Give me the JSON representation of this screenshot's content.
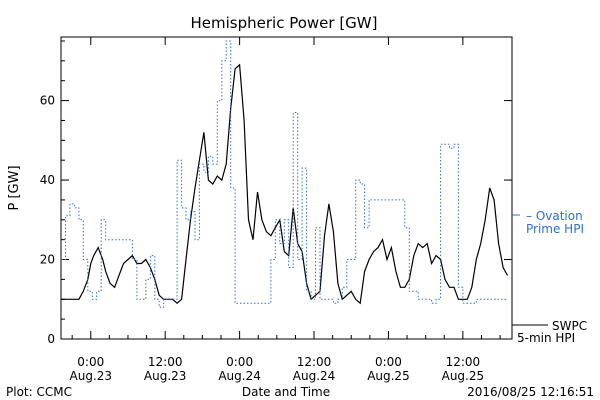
{
  "chart_data": {
    "type": "line",
    "title": "Hemispheric Power [GW]",
    "xlabel": "Date and Time",
    "ylabel": "P [GW]",
    "ylim": [
      0,
      76
    ],
    "xlim": [
      -0.2,
      2.83
    ],
    "yticks": [
      0,
      20,
      40,
      60
    ],
    "xticks": [
      {
        "x": 0.0,
        "time": "0:00",
        "date": "Aug.23"
      },
      {
        "x": 0.5,
        "time": "12:00",
        "date": "Aug.23"
      },
      {
        "x": 1.0,
        "time": "0:00",
        "date": "Aug.24"
      },
      {
        "x": 1.5,
        "time": "12:00",
        "date": "Aug.24"
      },
      {
        "x": 2.0,
        "time": "0:00",
        "date": "Aug.25"
      },
      {
        "x": 2.5,
        "time": "12:00",
        "date": "Aug.25"
      }
    ],
    "grid": false,
    "series": [
      {
        "name": "SWPC 5-min HPI",
        "legend_line1": "SWPC",
        "legend_line2": "5-min HPI",
        "color": "#000000",
        "style": "solid",
        "x": [
          -0.2,
          -0.16,
          -0.12,
          -0.08,
          -0.05,
          -0.02,
          0.0,
          0.02,
          0.05,
          0.08,
          0.1,
          0.13,
          0.16,
          0.19,
          0.22,
          0.25,
          0.28,
          0.31,
          0.34,
          0.37,
          0.4,
          0.43,
          0.46,
          0.49,
          0.52,
          0.55,
          0.58,
          0.61,
          0.64,
          0.67,
          0.7,
          0.73,
          0.76,
          0.79,
          0.82,
          0.85,
          0.88,
          0.91,
          0.94,
          0.97,
          1.0,
          1.03,
          1.06,
          1.09,
          1.12,
          1.15,
          1.18,
          1.21,
          1.24,
          1.27,
          1.3,
          1.33,
          1.36,
          1.39,
          1.42,
          1.45,
          1.48,
          1.51,
          1.54,
          1.57,
          1.6,
          1.63,
          1.66,
          1.69,
          1.72,
          1.75,
          1.78,
          1.81,
          1.84,
          1.87,
          1.9,
          1.93,
          1.96,
          1.99,
          2.02,
          2.05,
          2.08,
          2.11,
          2.14,
          2.17,
          2.2,
          2.23,
          2.26,
          2.29,
          2.32,
          2.35,
          2.38,
          2.41,
          2.44,
          2.47,
          2.5,
          2.53,
          2.56,
          2.59,
          2.62,
          2.65,
          2.68,
          2.71,
          2.74,
          2.77,
          2.8
        ],
        "y": [
          10,
          10,
          10,
          10,
          12,
          15,
          19,
          21,
          23,
          20,
          17,
          14,
          13,
          16,
          19,
          20,
          21,
          19,
          19,
          20,
          18,
          15,
          11,
          10,
          10,
          10,
          9,
          10,
          20,
          30,
          38,
          45,
          52,
          40,
          39,
          41,
          40,
          44,
          58,
          68,
          69,
          55,
          30,
          25,
          37,
          30,
          27,
          26,
          28,
          30,
          22,
          21,
          33,
          24,
          22,
          14,
          10,
          11,
          12,
          26,
          34,
          27,
          14,
          10,
          11,
          12,
          10,
          9,
          17,
          20,
          22,
          23,
          25,
          20,
          23,
          17,
          13,
          13,
          15,
          21,
          24,
          23,
          24,
          19,
          21,
          20,
          15,
          13,
          13,
          10,
          10,
          10,
          13,
          20,
          24,
          30,
          38,
          35,
          24,
          18,
          16
        ]
      },
      {
        "name": "Ovation Prime HPI",
        "legend_line1": "– Ovation",
        "legend_line2": "Prime HPI",
        "color": "#2a6fd6",
        "style": "dotted",
        "x": [
          -0.2,
          -0.17,
          -0.14,
          -0.11,
          -0.08,
          -0.05,
          -0.02,
          0.01,
          0.04,
          0.07,
          0.1,
          0.13,
          0.16,
          0.19,
          0.22,
          0.25,
          0.28,
          0.31,
          0.34,
          0.37,
          0.4,
          0.43,
          0.46,
          0.49,
          0.52,
          0.55,
          0.58,
          0.61,
          0.64,
          0.67,
          0.7,
          0.73,
          0.76,
          0.79,
          0.82,
          0.85,
          0.88,
          0.91,
          0.94,
          0.97,
          1.0,
          1.03,
          1.06,
          1.09,
          1.12,
          1.15,
          1.18,
          1.21,
          1.24,
          1.27,
          1.3,
          1.33,
          1.36,
          1.39,
          1.42,
          1.45,
          1.48,
          1.51,
          1.54,
          1.57,
          1.6,
          1.63,
          1.66,
          1.69,
          1.72,
          1.75,
          1.78,
          1.81,
          1.84,
          1.87,
          1.9,
          1.93,
          1.96,
          1.99,
          2.02,
          2.05,
          2.08,
          2.11,
          2.14,
          2.17,
          2.2,
          2.23,
          2.26,
          2.29,
          2.32,
          2.35,
          2.38,
          2.41,
          2.44,
          2.47,
          2.5,
          2.53,
          2.56,
          2.59,
          2.62,
          2.65,
          2.68,
          2.71,
          2.74,
          2.77,
          2.8
        ],
        "y": [
          20,
          31,
          34,
          33,
          30,
          20,
          12,
          10,
          12,
          30,
          25,
          25,
          25,
          25,
          25,
          25,
          20,
          10,
          10,
          15,
          21,
          10,
          8,
          10,
          10,
          10,
          45,
          33,
          30,
          32,
          25,
          44,
          42,
          46,
          44,
          60,
          70,
          75,
          38,
          9,
          9,
          9,
          9,
          9,
          9,
          9,
          9,
          20,
          30,
          24,
          30,
          18,
          57,
          20,
          43,
          12,
          10,
          28,
          10,
          10,
          10,
          9,
          10,
          13,
          20,
          20,
          40,
          39,
          28,
          35,
          35,
          35,
          35,
          35,
          35,
          35,
          35,
          28,
          12,
          12,
          10,
          10,
          10,
          9,
          10,
          49,
          49,
          48,
          49,
          13,
          9,
          9,
          9,
          10,
          10,
          10,
          10,
          10,
          10,
          10,
          10
        ]
      }
    ],
    "footer": {
      "left": "Plot: CCMC",
      "right": "2016/08/25 12:16:51"
    }
  }
}
